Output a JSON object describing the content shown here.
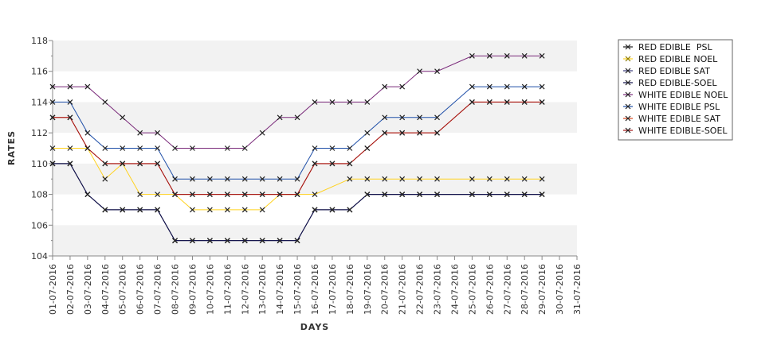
{
  "chart_data": {
    "type": "line",
    "xlabel": "DAYS",
    "ylabel": "RATES",
    "ylim": [
      104,
      118
    ],
    "yticks": [
      104,
      106,
      108,
      110,
      112,
      114,
      116,
      118
    ],
    "grid": "alternating horizontal bands",
    "legend_position": "right",
    "x": [
      "01-07-2016",
      "02-07-2016",
      "03-07-2016",
      "04-07-2016",
      "05-07-2016",
      "06-07-2016",
      "07-07-2016",
      "08-07-2016",
      "09-07-2016",
      "10-07-2016",
      "11-07-2016",
      "12-07-2016",
      "13-07-2016",
      "14-07-2016",
      "15-07-2016",
      "16-07-2016",
      "17-07-2016",
      "18-07-2016",
      "19-07-2016",
      "20-07-2016",
      "21-07-2016",
      "22-07-2016",
      "23-07-2016",
      "24-07-2016",
      "25-07-2016",
      "26-07-2016",
      "27-07-2016",
      "28-07-2016",
      "29-07-2016",
      "30-07-2016",
      "31-07-2016"
    ],
    "series": [
      {
        "name": "RED EDIBLE  PSL",
        "color": "#1a1a1a",
        "values": [
          110,
          110,
          108,
          107,
          107,
          107,
          107,
          105,
          105,
          105,
          105,
          105,
          105,
          105,
          105,
          107,
          107,
          107,
          108,
          108,
          108,
          108,
          108,
          null,
          108,
          108,
          108,
          108,
          108,
          null,
          null
        ]
      },
      {
        "name": "RED EDIBLE NOEL",
        "color": "#ffd21f",
        "values": [
          111,
          111,
          111,
          109,
          110,
          108,
          108,
          108,
          107,
          107,
          107,
          107,
          107,
          108,
          108,
          108,
          null,
          109,
          109,
          109,
          109,
          109,
          109,
          null,
          109,
          109,
          109,
          109,
          109,
          null,
          null
        ]
      },
      {
        "name": "RED EDIBLE SAT",
        "color": "#3a3a7a",
        "values": [
          110,
          110,
          108,
          107,
          107,
          107,
          107,
          105,
          105,
          105,
          105,
          105,
          105,
          105,
          105,
          107,
          107,
          107,
          108,
          108,
          108,
          108,
          108,
          null,
          108,
          108,
          108,
          108,
          108,
          null,
          null
        ]
      },
      {
        "name": "RED EDIBLE-SOEL",
        "color": "#10104a",
        "values": [
          110,
          110,
          108,
          107,
          107,
          107,
          107,
          105,
          105,
          105,
          105,
          105,
          105,
          105,
          105,
          107,
          107,
          107,
          108,
          108,
          108,
          108,
          108,
          null,
          108,
          108,
          108,
          108,
          108,
          null,
          null
        ]
      },
      {
        "name": "WHITE EDIBLE NOEL",
        "color": "#7a2a7a",
        "values": [
          115,
          115,
          115,
          114,
          113,
          112,
          112,
          111,
          111,
          null,
          111,
          111,
          112,
          113,
          113,
          114,
          114,
          114,
          114,
          115,
          115,
          116,
          116,
          null,
          117,
          117,
          117,
          117,
          117,
          null,
          null
        ]
      },
      {
        "name": "WHITE EDIBLE PSL",
        "color": "#1f4fa8",
        "values": [
          114,
          114,
          112,
          111,
          111,
          111,
          111,
          109,
          109,
          109,
          109,
          109,
          109,
          109,
          109,
          111,
          111,
          111,
          112,
          113,
          113,
          113,
          113,
          null,
          115,
          115,
          115,
          115,
          115,
          null,
          null
        ]
      },
      {
        "name": "WHITE EDIBLE SAT",
        "color": "#d9451a",
        "values": [
          113,
          113,
          111,
          110,
          110,
          110,
          110,
          108,
          108,
          108,
          108,
          108,
          108,
          108,
          108,
          110,
          110,
          110,
          111,
          112,
          112,
          112,
          112,
          null,
          114,
          114,
          114,
          114,
          114,
          null,
          null
        ]
      },
      {
        "name": "WHITE EDIBLE-SOEL",
        "color": "#a31414",
        "values": [
          113,
          113,
          111,
          110,
          110,
          110,
          110,
          108,
          108,
          108,
          108,
          108,
          108,
          108,
          108,
          110,
          110,
          110,
          111,
          112,
          112,
          112,
          112,
          null,
          114,
          114,
          114,
          114,
          114,
          null,
          null
        ]
      }
    ]
  }
}
